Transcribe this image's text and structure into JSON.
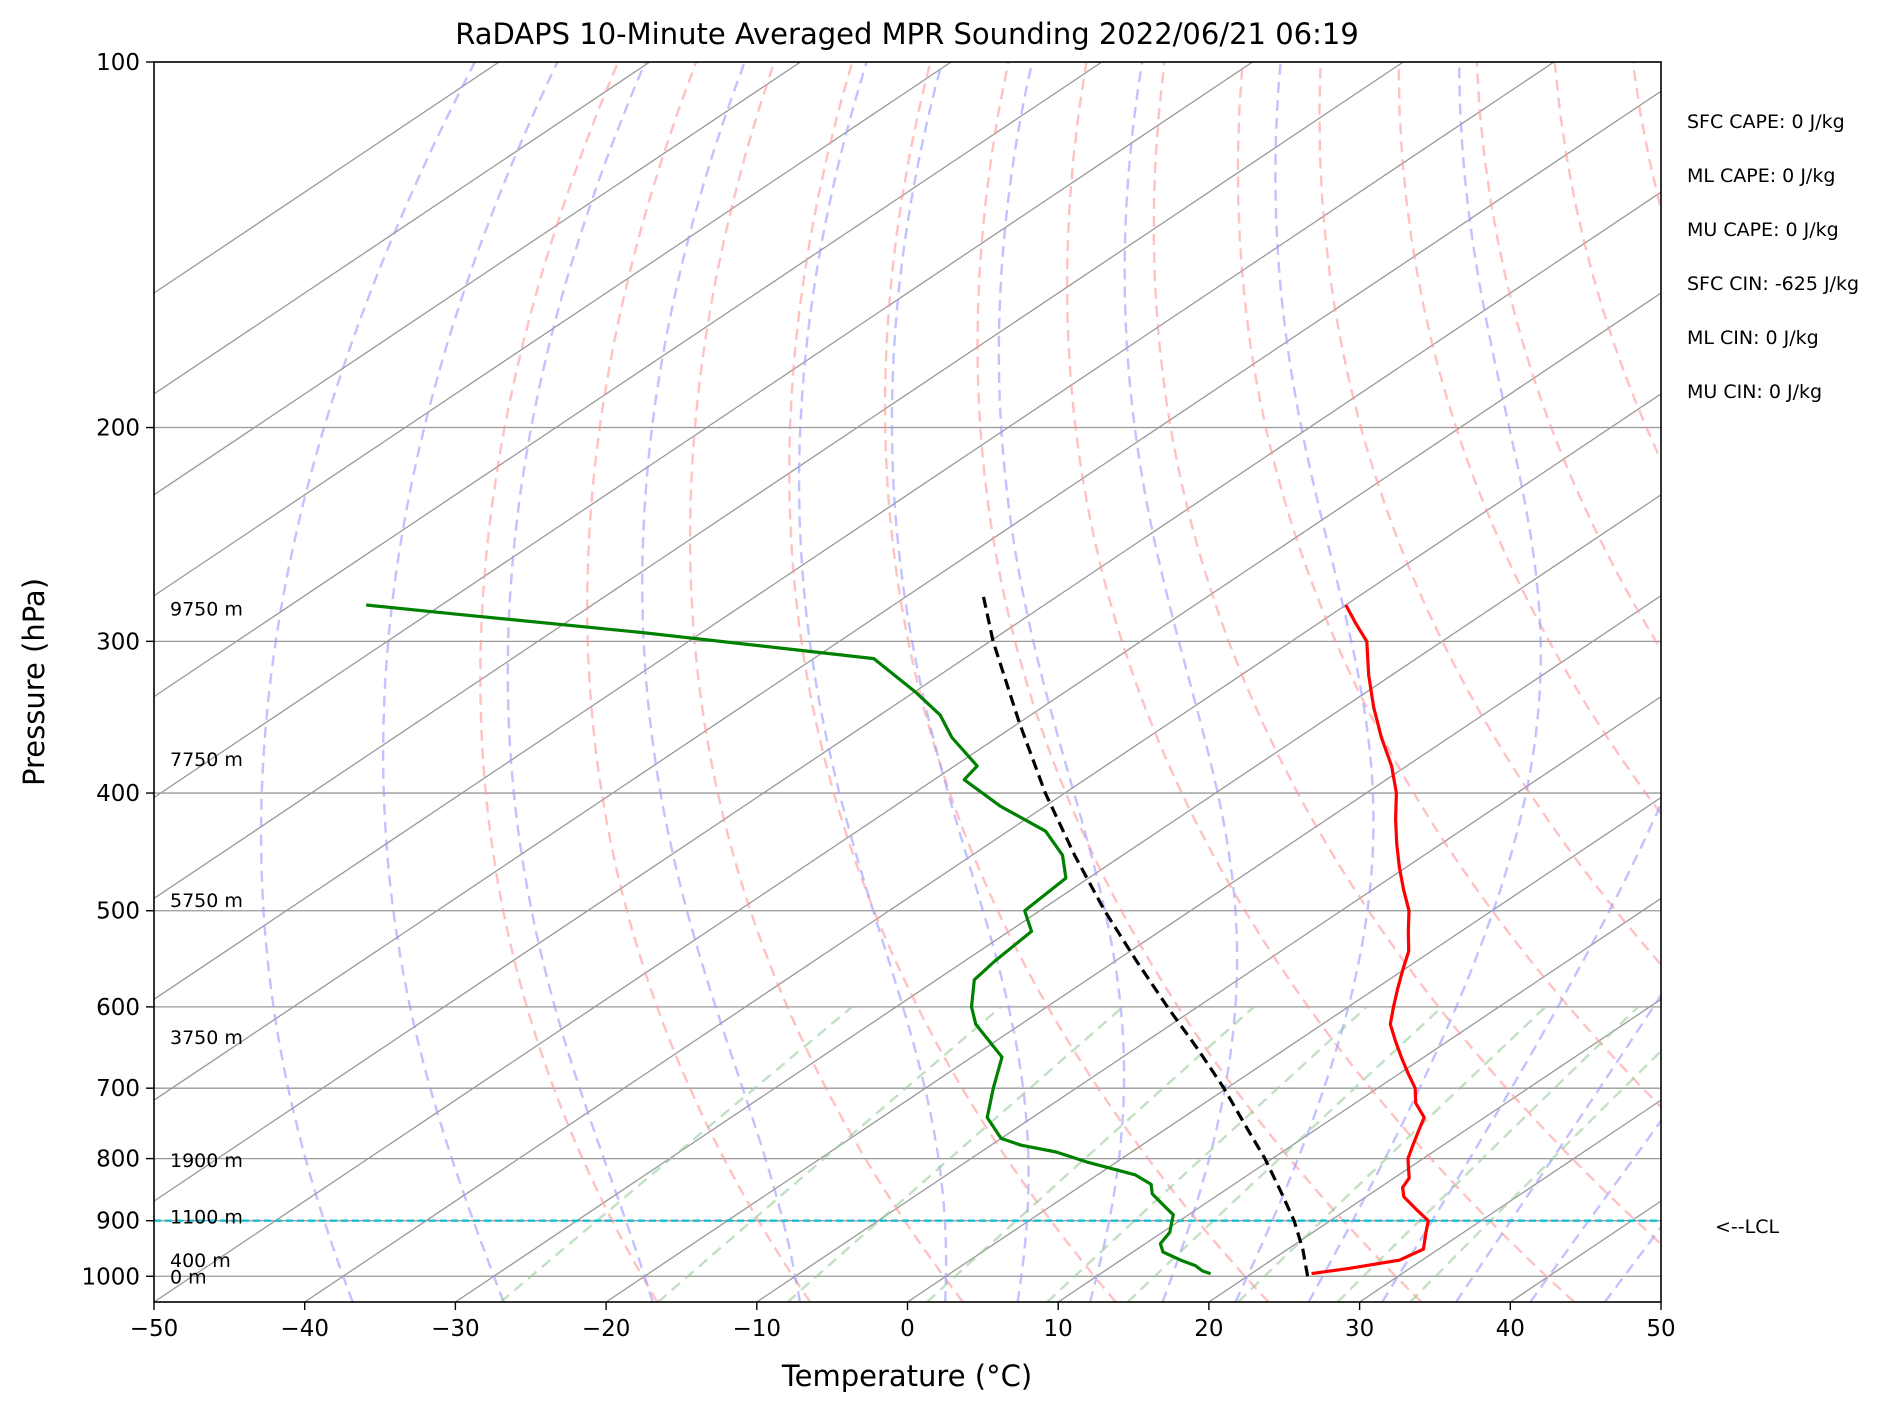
{
  "chart_data": {
    "type": "line",
    "title": "RaDAPS 10-Minute Averaged MPR Sounding 2022/06/21 06:19",
    "xlabel": "Temperature (°C)",
    "ylabel": "Pressure (hPa)",
    "xlim": [
      -50,
      50
    ],
    "ylim": [
      1050,
      100
    ],
    "yscale": "log",
    "skew": true,
    "x_ticks": [
      -50,
      -40,
      -30,
      -20,
      -10,
      0,
      10,
      20,
      30,
      40,
      50
    ],
    "y_ticks": [
      100,
      200,
      300,
      400,
      500,
      600,
      700,
      800,
      900,
      1000
    ],
    "x_tick_labels": [
      "−50",
      "−40",
      "−30",
      "−20",
      "−10",
      "0",
      "10",
      "20",
      "30",
      "40",
      "50"
    ],
    "grid": true,
    "colors": {
      "temperature": "#ff0000",
      "dewpoint": "#008000",
      "parcel": "#000000",
      "lcl": "#17becf",
      "isotherm": "#999999",
      "dry_adiabat": "#ff9999",
      "moist_adiabat": "#9999ff",
      "mixing_ratio": "#99cc99"
    },
    "series": [
      {
        "key": "temperature",
        "p": [
          995,
          985,
          970,
          950,
          920,
          900,
          880,
          860,
          845,
          830,
          815,
          800,
          780,
          760,
          740,
          720,
          700,
          680,
          660,
          640,
          620,
          600,
          580,
          560,
          540,
          520,
          500,
          480,
          460,
          440,
          420,
          400,
          380,
          360,
          340,
          320,
          300,
          290,
          280
        ],
        "t": [
          24,
          26,
          28.5,
          29,
          27.5,
          26.5,
          24.5,
          22.5,
          21.5,
          21,
          20,
          19,
          18,
          17,
          16,
          14,
          12.5,
          10.5,
          8.5,
          6.5,
          4.5,
          3,
          1.5,
          0,
          -1.5,
          -3.5,
          -5.5,
          -8,
          -10.5,
          -13,
          -15.5,
          -18,
          -21,
          -24.5,
          -28,
          -31.5,
          -35,
          -37.5,
          -40
        ]
      },
      {
        "key": "dewpoint",
        "p": [
          995,
          990,
          980,
          970,
          955,
          940,
          920,
          910,
          890,
          870,
          855,
          840,
          825,
          805,
          790,
          780,
          770,
          740,
          700,
          660,
          620,
          600,
          570,
          550,
          520,
          500,
          470,
          450,
          430,
          410,
          390,
          380,
          360,
          345,
          330,
          310,
          295,
          285,
          280
        ],
        "t": [
          17.3,
          16.5,
          15.5,
          14,
          12,
          11,
          10.5,
          10,
          9,
          7,
          5.5,
          4.5,
          2.5,
          -2,
          -5,
          -8,
          -10,
          -13,
          -15.5,
          -18,
          -23,
          -25,
          -27.5,
          -28,
          -28.5,
          -31,
          -31.5,
          -34,
          -37.5,
          -43,
          -48,
          -48.5,
          -53,
          -56,
          -60,
          -66,
          -84,
          -98,
          -105
        ]
      },
      {
        "key": "parcel",
        "p": [
          1000,
          950,
          900,
          850,
          800,
          750,
          700,
          650,
          600,
          550,
          500,
          450,
          400,
          350,
          300,
          275
        ],
        "t": [
          24,
          21,
          17.6,
          13.7,
          9.5,
          4.8,
          -0.2,
          -5.8,
          -12,
          -18.6,
          -25.7,
          -33.2,
          -41.3,
          -50,
          -59.8,
          -65
        ]
      }
    ],
    "lcl_pressure": 900,
    "lcl_label": "<--LCL",
    "height_labels": [
      {
        "p": 282,
        "text": "9750 m"
      },
      {
        "p": 375,
        "text": "7750 m"
      },
      {
        "p": 490,
        "text": "5750 m"
      },
      {
        "p": 635,
        "text": "3750 m"
      },
      {
        "p": 802,
        "text": "1900 m"
      },
      {
        "p": 893,
        "text": "1100 m"
      },
      {
        "p": 970,
        "text": "400 m"
      },
      {
        "p": 1000,
        "text": "0 m"
      }
    ],
    "stats": [
      "SFC CAPE: 0 J/kg",
      "ML CAPE: 0 J/kg",
      "MU CAPE: 0 J/kg",
      "SFC CIN: -625 J/kg",
      "ML CIN: 0 J/kg",
      "MU CIN: 0 J/kg"
    ],
    "isotherm_range": [
      -150,
      50,
      10
    ],
    "dry_adiabat_thetas": [
      253,
      263,
      273,
      283,
      293,
      303,
      313,
      323,
      333,
      343,
      353,
      363,
      373,
      383,
      393,
      403,
      413
    ],
    "moist_adiabat_t0": [
      -40,
      -30,
      -20,
      -10,
      0,
      5,
      10,
      15,
      20,
      25,
      30,
      35,
      40,
      45
    ],
    "mixing_ratios": [
      0.0004,
      0.001,
      0.002,
      0.004,
      0.007,
      0.01,
      0.016,
      0.024,
      0.032
    ]
  }
}
